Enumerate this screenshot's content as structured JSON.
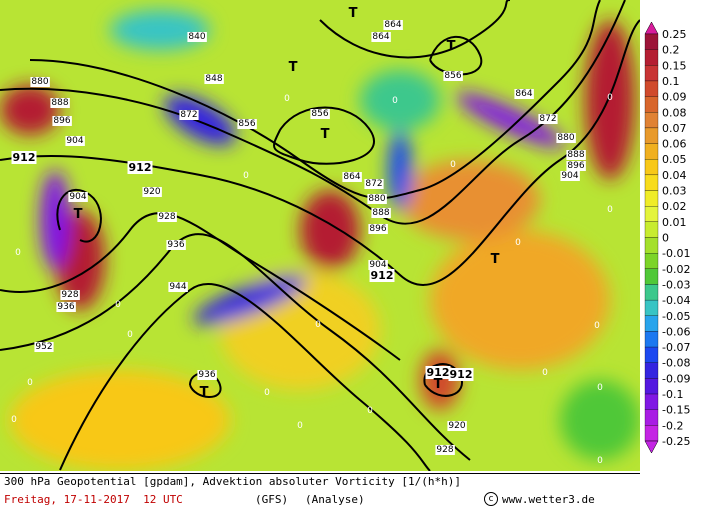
{
  "colorbar": {
    "levels": [
      {
        "value": 0.25,
        "color": "#d81c9c"
      },
      {
        "value": 0.2,
        "color": "#9c1438"
      },
      {
        "value": 0.15,
        "color": "#b41e32"
      },
      {
        "value": 0.1,
        "color": "#c83434"
      },
      {
        "value": 0.09,
        "color": "#d04a2c"
      },
      {
        "value": 0.08,
        "color": "#d8662c"
      },
      {
        "value": 0.07,
        "color": "#e08234"
      },
      {
        "value": 0.06,
        "color": "#e89a2c"
      },
      {
        "value": 0.05,
        "color": "#f0b020"
      },
      {
        "value": 0.04,
        "color": "#f8c818"
      },
      {
        "value": 0.03,
        "color": "#f8dc1c"
      },
      {
        "value": 0.02,
        "color": "#f0ec28"
      },
      {
        "value": 0.01,
        "color": "#e4f43c"
      },
      {
        "value": 0,
        "color": "#c8ec30"
      },
      {
        "value": -0.01,
        "color": "#a4e02c"
      },
      {
        "value": -0.02,
        "color": "#7cd428"
      },
      {
        "value": -0.03,
        "color": "#50c838"
      },
      {
        "value": -0.04,
        "color": "#3cc88c"
      },
      {
        "value": -0.05,
        "color": "#38c4c4"
      },
      {
        "value": -0.06,
        "color": "#28a4ec"
      },
      {
        "value": -0.07,
        "color": "#1c78f0"
      },
      {
        "value": -0.08,
        "color": "#1c48f0"
      },
      {
        "value": -0.09,
        "color": "#3424e0"
      },
      {
        "value": -0.1,
        "color": "#5418e0"
      },
      {
        "value": -0.15,
        "color": "#8018e4"
      },
      {
        "value": -0.2,
        "color": "#a81ce4"
      },
      {
        "value": -0.25,
        "color": "#c424e4"
      }
    ]
  },
  "map": {
    "contour_labels": [
      "840",
      "848",
      "856",
      "872",
      "856",
      "864",
      "864",
      "856",
      "864",
      "872",
      "880",
      "888",
      "896",
      "904",
      "880",
      "888",
      "896",
      "904",
      "912",
      "912",
      "904",
      "920",
      "928",
      "936",
      "944",
      "952",
      "928",
      "936",
      "864",
      "872",
      "880",
      "888",
      "896",
      "904",
      "912",
      "912",
      "912",
      "936",
      "920",
      "928"
    ],
    "lows": [
      "T",
      "T",
      "T",
      "T",
      "T",
      "T",
      "T",
      "T"
    ],
    "zero_labels": [
      "0",
      "0",
      "0",
      "0",
      "0",
      "0",
      "0",
      "0",
      "0",
      "0",
      "0",
      "0",
      "0",
      "0",
      "0",
      "0",
      "0",
      "0",
      "0",
      "0"
    ]
  },
  "footer": {
    "line1": "300 hPa Geopotential [gpdam], Advektion absoluter Vorticity [1/(h*h)]",
    "date": "Freitag, 17-11-2017  12 UTC",
    "model": "(GFS)",
    "kind": "(Analyse)",
    "source": "www.wetter3.de"
  }
}
